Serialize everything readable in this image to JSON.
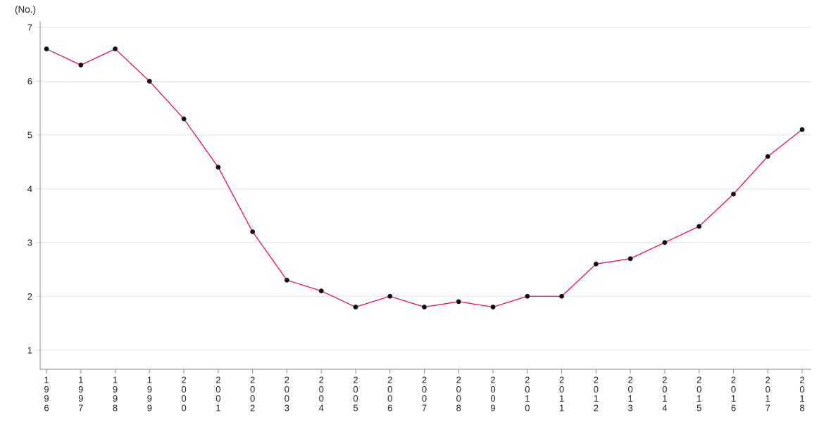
{
  "chart_data": {
    "type": "line",
    "title": "",
    "ylabel": "(No.)",
    "xlabel": "",
    "categories": [
      "1996",
      "1997",
      "1998",
      "1999",
      "2000",
      "2001",
      "2002",
      "2003",
      "2004",
      "2005",
      "2006",
      "2007",
      "2008",
      "2009",
      "2010",
      "2011",
      "2012",
      "2013",
      "2014",
      "2015",
      "2016",
      "2017",
      "2018"
    ],
    "series": [
      {
        "name": "No.",
        "values": [
          6.6,
          6.3,
          6.6,
          6.0,
          5.3,
          4.4,
          3.2,
          2.3,
          2.1,
          1.8,
          2.0,
          1.8,
          1.9,
          1.8,
          2.0,
          2.0,
          2.6,
          2.7,
          3.0,
          3.3,
          3.9,
          4.6,
          5.1
        ]
      }
    ],
    "ylim": [
      1,
      7
    ],
    "y_ticks": [
      1,
      2,
      3,
      4,
      5,
      6,
      7
    ],
    "grid": "horizontal",
    "legend": "none",
    "marker": "filled-circle",
    "colors": {
      "line": "#e5114d",
      "marker": "#111111",
      "grid": "#e2e2e2",
      "axis": "#8f8f8f",
      "y_tick": "#d8d8d8",
      "text": "#222222",
      "background": "#ffffff"
    }
  }
}
